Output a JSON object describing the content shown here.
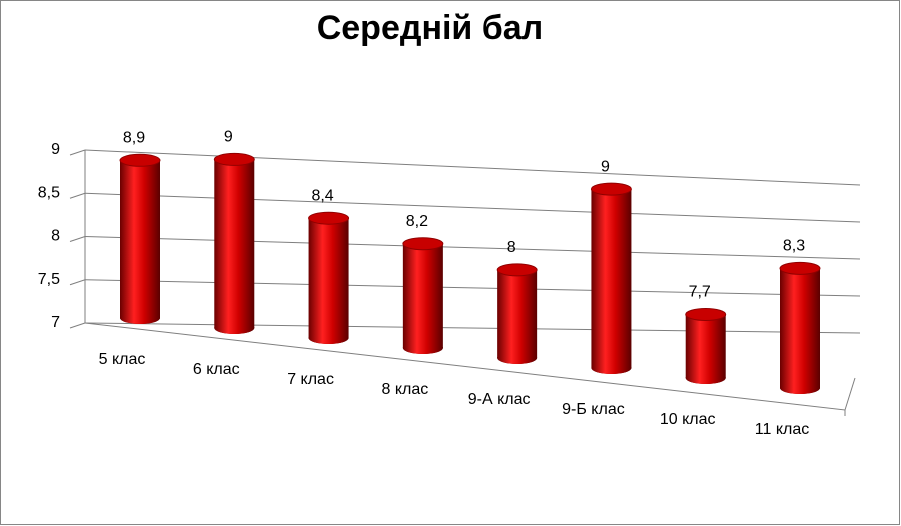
{
  "chart_data": {
    "type": "cylinder3d",
    "title": "Середній бал",
    "categories": [
      "5 клас",
      "6 клас",
      "7 клас",
      "8 клас",
      "9-А клас",
      "9-Б клас",
      "10 клас",
      "11 клас"
    ],
    "values": [
      8.9,
      9,
      8.4,
      8.2,
      8,
      9,
      7.7,
      8.3
    ],
    "value_labels": [
      "8,9",
      "9",
      "8,4",
      "8,2",
      "8",
      "9",
      "7,7",
      "8,3"
    ],
    "color": "#e00000",
    "ylim": [
      7,
      9
    ],
    "yticks": [
      7,
      {
        "value": 7.5,
        "label": "7,5"
      },
      8,
      {
        "value": 8.5,
        "label": "8,5"
      },
      9
    ],
    "grid": true
  }
}
